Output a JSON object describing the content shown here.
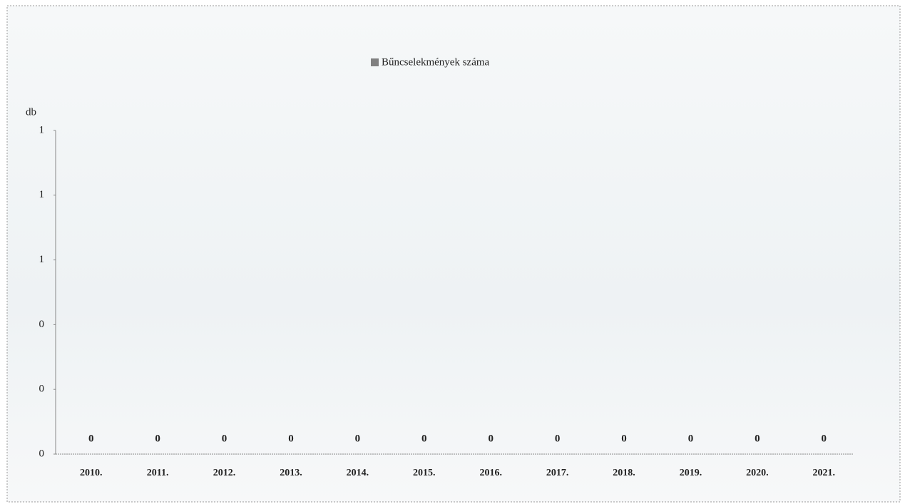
{
  "chart_data": {
    "type": "bar",
    "legend_position": "top",
    "y_axis_label": "db",
    "series": [
      {
        "name": "Bűncselekmények száma",
        "color": "#808080",
        "values": [
          0,
          0,
          0,
          0,
          0,
          0,
          0,
          0,
          0,
          0,
          0,
          0
        ]
      }
    ],
    "categories": [
      "2010.",
      "2011.",
      "2012.",
      "2013.",
      "2014.",
      "2015.",
      "2016.",
      "2017.",
      "2018.",
      "2019.",
      "2020.",
      "2021."
    ],
    "ylim": [
      0,
      1
    ],
    "yticks": [
      0,
      {
        "value": 0.2,
        "label": "0"
      },
      {
        "value": 0.4,
        "label": "0"
      },
      {
        "value": 0.6,
        "label": "1"
      },
      {
        "value": 0.8,
        "label": "1"
      },
      1
    ],
    "grid": false
  }
}
